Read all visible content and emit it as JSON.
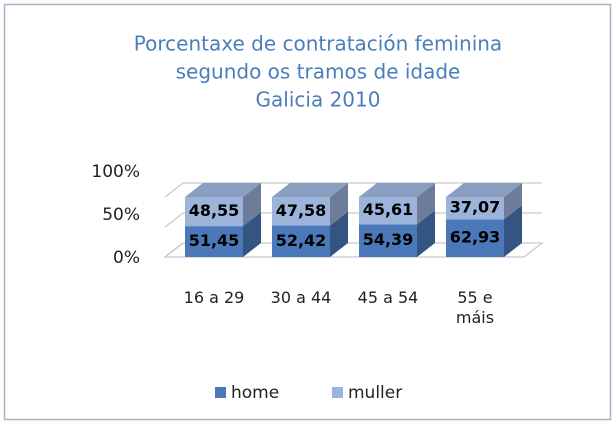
{
  "chart_data": {
    "type": "bar3d_stacked",
    "title": [
      "Porcentaxe de contratación feminina",
      "segundo os tramos de idade",
      "Galicia 2010"
    ],
    "categories": [
      "16 a 29",
      "30 a 44",
      "45 a 54",
      "55 e máis"
    ],
    "series": [
      {
        "name": "home",
        "color": "#4a78b8",
        "values": [
          51.45,
          52.42,
          54.39,
          62.93
        ],
        "value_labels": [
          "51,45",
          "52,42",
          "54,39",
          "62,93"
        ]
      },
      {
        "name": "muller",
        "color": "#9cb3da",
        "values": [
          48.55,
          47.58,
          45.61,
          37.07
        ],
        "value_labels": [
          "48,55",
          "47,58",
          "45,61",
          "37,07"
        ]
      }
    ],
    "ylim": [
      0,
      100
    ],
    "yticks": [
      {
        "value": 0,
        "label": "0%"
      },
      {
        "value": 50,
        "label": "50%"
      },
      {
        "value": 100,
        "label": "100%"
      }
    ],
    "grid": true,
    "legend": "bottom"
  }
}
